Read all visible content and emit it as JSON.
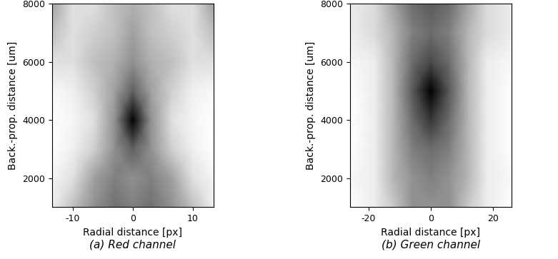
{
  "chart_data": [
    {
      "type": "heatmap",
      "caption": "(a) Red channel",
      "x_label": "Radial distance [px]",
      "y_label": "Back.-prop. distance [um]",
      "xlim": [
        -13.5,
        13.5
      ],
      "ylim": [
        1000,
        8000
      ],
      "xticks": [
        -10,
        0,
        10
      ],
      "yticks": [
        2000,
        4000,
        6000,
        8000
      ],
      "x": [
        -13.5,
        -10,
        -6.5,
        -3,
        0,
        3,
        6.5,
        10,
        13.5
      ],
      "y": [
        1000,
        2000,
        3000,
        4000,
        5000,
        6000,
        7000,
        8000
      ],
      "cells": [
        [
          0.9,
          0.75,
          0.6,
          0.5,
          0.55,
          0.5,
          0.6,
          0.75,
          0.9
        ],
        [
          0.92,
          0.85,
          0.65,
          0.55,
          0.6,
          0.55,
          0.65,
          0.85,
          0.92
        ],
        [
          0.95,
          0.9,
          0.8,
          0.6,
          0.45,
          0.6,
          0.8,
          0.9,
          0.95
        ],
        [
          0.95,
          0.92,
          0.85,
          0.6,
          0.15,
          0.6,
          0.85,
          0.92,
          0.95
        ],
        [
          0.93,
          0.9,
          0.8,
          0.65,
          0.45,
          0.65,
          0.8,
          0.9,
          0.93
        ],
        [
          0.85,
          0.85,
          0.75,
          0.7,
          0.6,
          0.7,
          0.75,
          0.85,
          0.85
        ],
        [
          0.75,
          0.85,
          0.8,
          0.75,
          0.65,
          0.75,
          0.8,
          0.85,
          0.75
        ],
        [
          0.65,
          0.85,
          0.85,
          0.75,
          0.7,
          0.75,
          0.85,
          0.85,
          0.65
        ]
      ]
    },
    {
      "type": "heatmap",
      "caption": "(b) Green channel",
      "x_label": "Radial distance [px]",
      "y_label": "Back.-prop. distance [um]",
      "xlim": [
        -26,
        26
      ],
      "ylim": [
        1000,
        8000
      ],
      "xticks": [
        -20,
        0,
        20
      ],
      "yticks": [
        2000,
        4000,
        6000,
        8000
      ],
      "x": [
        -26,
        -18,
        -12,
        -6,
        0,
        6,
        12,
        18,
        26
      ],
      "y": [
        1000,
        2000,
        3000,
        4000,
        5000,
        6000,
        7000,
        8000
      ],
      "cells": [
        [
          0.9,
          0.85,
          0.75,
          0.6,
          0.6,
          0.6,
          0.75,
          0.85,
          0.9
        ],
        [
          0.88,
          0.85,
          0.7,
          0.6,
          0.55,
          0.6,
          0.7,
          0.85,
          0.88
        ],
        [
          0.9,
          0.85,
          0.7,
          0.55,
          0.5,
          0.55,
          0.7,
          0.85,
          0.9
        ],
        [
          0.9,
          0.85,
          0.7,
          0.5,
          0.35,
          0.5,
          0.7,
          0.85,
          0.9
        ],
        [
          0.9,
          0.85,
          0.7,
          0.45,
          0.2,
          0.45,
          0.7,
          0.85,
          0.9
        ],
        [
          0.88,
          0.85,
          0.7,
          0.5,
          0.4,
          0.5,
          0.7,
          0.85,
          0.88
        ],
        [
          0.85,
          0.8,
          0.7,
          0.55,
          0.5,
          0.55,
          0.7,
          0.8,
          0.85
        ],
        [
          0.85,
          0.8,
          0.65,
          0.5,
          0.45,
          0.5,
          0.65,
          0.8,
          0.85
        ]
      ]
    }
  ]
}
